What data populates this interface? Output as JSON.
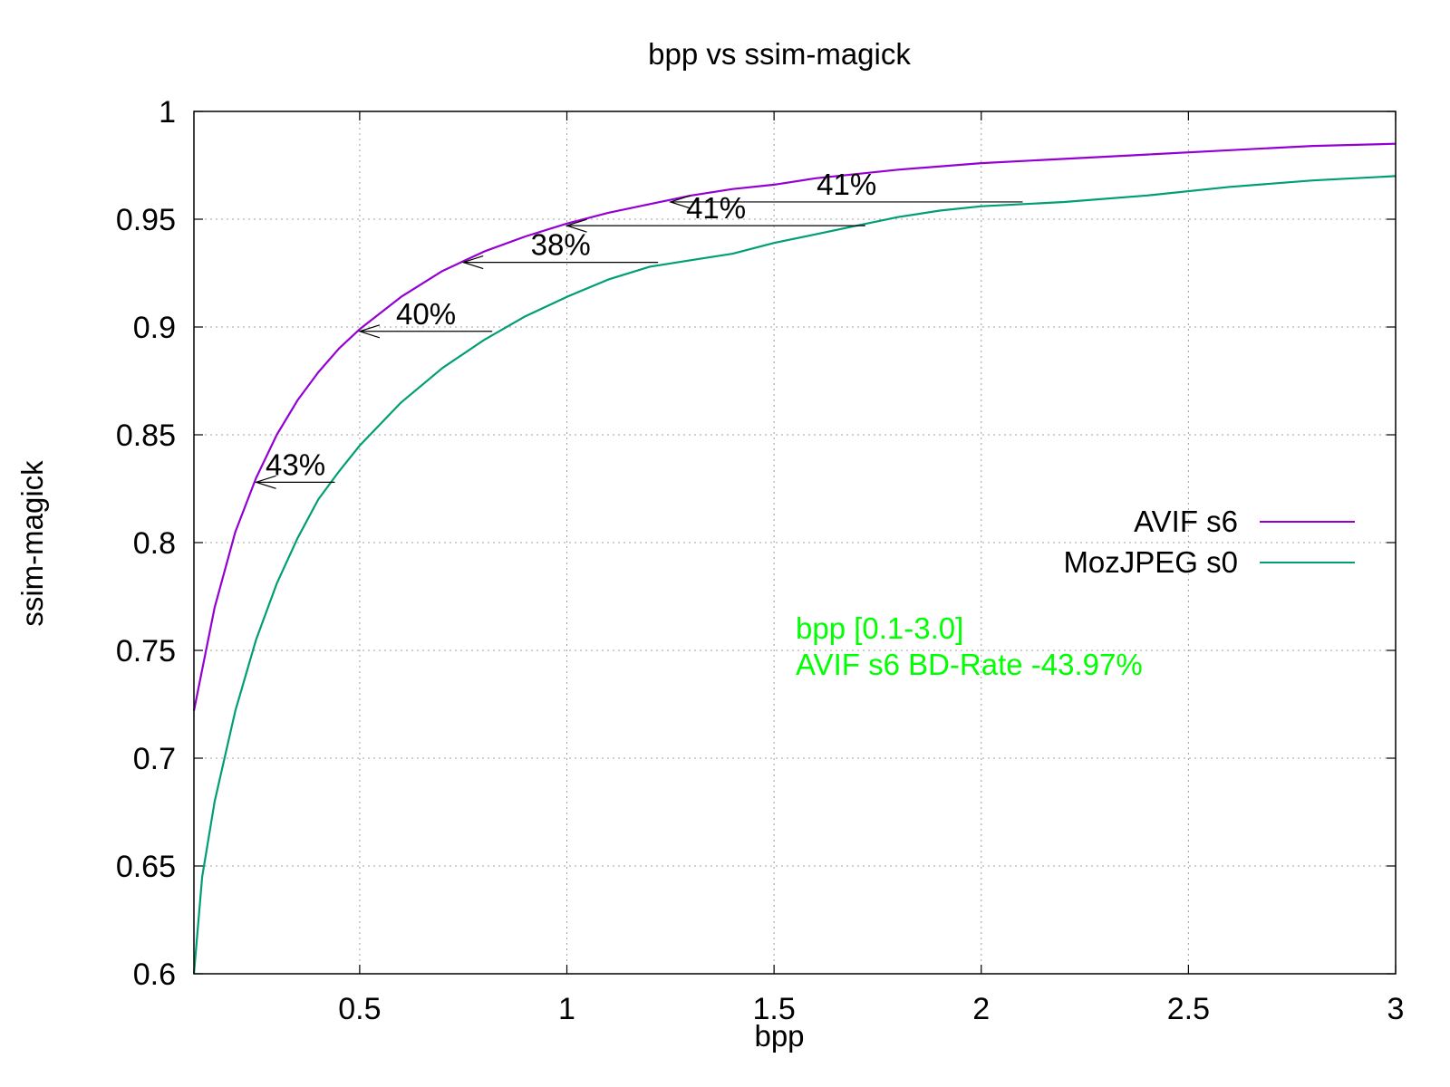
{
  "chart_data": {
    "type": "line",
    "title": "bpp vs ssim-magick",
    "xlabel": "bpp",
    "ylabel": "ssim-magick",
    "xlim": [
      0.1,
      3.0
    ],
    "ylim": [
      0.6,
      1.0
    ],
    "xticks": [
      0.5,
      1,
      1.5,
      2,
      2.5,
      3
    ],
    "yticks": [
      0.6,
      0.65,
      0.7,
      0.75,
      0.8,
      0.85,
      0.9,
      0.95,
      1
    ],
    "xtick_labels": [
      "0.5",
      "1",
      "1.5",
      "2",
      "2.5",
      "3"
    ],
    "ytick_labels": [
      "0.6",
      "0.65",
      "0.7",
      "0.75",
      "0.8",
      "0.85",
      "0.9",
      "0.95",
      "1"
    ],
    "grid": true,
    "legend_position": "right",
    "series": [
      {
        "name": "AVIF s6",
        "color": "#9400d3",
        "x": [
          0.1,
          0.15,
          0.2,
          0.25,
          0.3,
          0.35,
          0.4,
          0.45,
          0.5,
          0.6,
          0.7,
          0.8,
          0.9,
          1.0,
          1.1,
          1.2,
          1.3,
          1.4,
          1.5,
          1.6,
          1.8,
          2.0,
          2.2,
          2.4,
          2.6,
          2.8,
          3.0
        ],
        "y": [
          0.722,
          0.77,
          0.805,
          0.83,
          0.85,
          0.866,
          0.879,
          0.89,
          0.899,
          0.914,
          0.926,
          0.935,
          0.942,
          0.948,
          0.953,
          0.957,
          0.961,
          0.964,
          0.966,
          0.969,
          0.973,
          0.976,
          0.978,
          0.98,
          0.982,
          0.984,
          0.985
        ]
      },
      {
        "name": "MozJPEG s0",
        "color": "#009e73",
        "x": [
          0.1,
          0.12,
          0.15,
          0.2,
          0.25,
          0.3,
          0.35,
          0.4,
          0.45,
          0.5,
          0.6,
          0.7,
          0.8,
          0.9,
          1.0,
          1.1,
          1.2,
          1.3,
          1.4,
          1.5,
          1.6,
          1.7,
          1.8,
          1.9,
          2.0,
          2.2,
          2.4,
          2.6,
          2.8,
          3.0
        ],
        "y": [
          0.6,
          0.645,
          0.68,
          0.722,
          0.755,
          0.781,
          0.802,
          0.82,
          0.833,
          0.845,
          0.865,
          0.881,
          0.894,
          0.905,
          0.914,
          0.922,
          0.928,
          0.931,
          0.934,
          0.939,
          0.943,
          0.947,
          0.951,
          0.954,
          0.956,
          0.958,
          0.961,
          0.965,
          0.968,
          0.97
        ]
      }
    ],
    "annotations": [
      {
        "label": "43%",
        "y": 0.828,
        "x_from": 0.44,
        "x_to": 0.25
      },
      {
        "label": "40%",
        "y": 0.898,
        "x_from": 0.82,
        "x_to": 0.5
      },
      {
        "label": "38%",
        "y": 0.93,
        "x_from": 1.22,
        "x_to": 0.75
      },
      {
        "label": "41%",
        "y": 0.947,
        "x_from": 1.72,
        "x_to": 1.0
      },
      {
        "label": "41%",
        "y": 0.958,
        "x_from": 2.1,
        "x_to": 1.25
      }
    ],
    "notes": [
      "bpp [0.1-3.0]",
      "AVIF s6 BD-Rate -43.97%"
    ],
    "note_color": "#00ff00"
  }
}
